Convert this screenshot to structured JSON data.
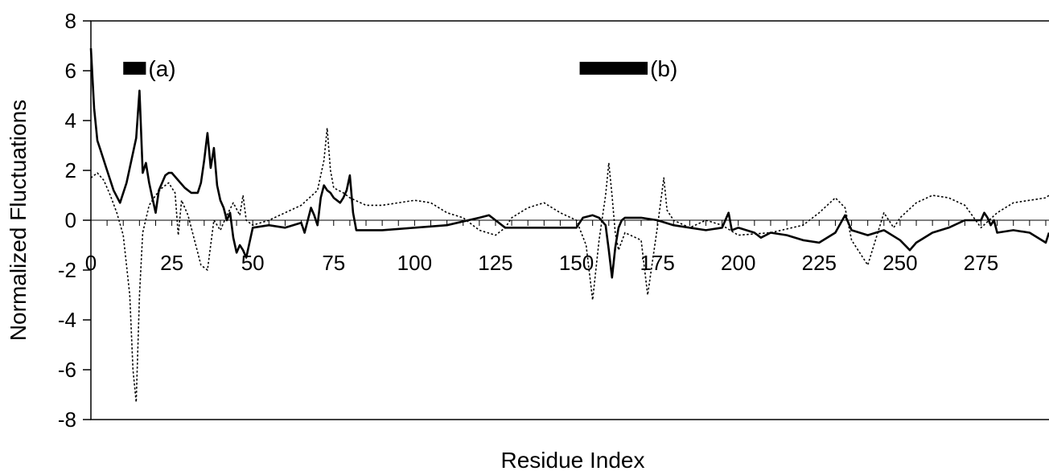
{
  "chart_data": {
    "type": "line",
    "title": "",
    "xlabel": "Residue Index",
    "ylabel": "Normalized Fluctuations",
    "xlim": [
      0,
      296
    ],
    "ylim": [
      -8,
      8
    ],
    "x_ticks": [
      0,
      25,
      50,
      75,
      100,
      125,
      150,
      175,
      200,
      225,
      250,
      275
    ],
    "y_ticks": [
      8,
      6,
      4,
      2,
      0,
      -2,
      -4,
      -6,
      -8
    ],
    "grid": false,
    "legend": "none",
    "annotations": [
      {
        "label": "(a)",
        "x_start": 10,
        "x_end": 17,
        "y": 6.1
      },
      {
        "label": "(b)",
        "x_start": 151,
        "x_end": 172,
        "y": 6.1
      }
    ],
    "series": [
      {
        "style": "solid",
        "color": "#000000",
        "x": [
          0,
          1,
          2,
          3,
          5,
          7,
          9,
          11,
          13,
          14,
          15,
          16,
          17,
          18,
          19,
          20,
          21,
          22,
          23,
          24,
          25,
          27,
          29,
          31,
          33,
          34,
          35,
          36,
          37,
          38,
          39,
          40,
          41,
          42,
          43,
          44,
          45,
          46,
          47,
          48,
          50,
          55,
          60,
          65,
          66,
          67,
          68,
          69,
          70,
          71,
          72,
          73,
          74,
          75,
          76,
          77,
          78,
          79,
          80,
          81,
          82,
          83,
          84,
          90,
          100,
          110,
          120,
          123,
          125,
          128,
          130,
          140,
          150,
          152,
          155,
          157,
          159,
          160,
          161,
          162,
          163,
          164,
          165,
          170,
          175,
          180,
          185,
          190,
          195,
          197,
          198,
          200,
          205,
          207,
          210,
          215,
          220,
          225,
          230,
          233,
          235,
          240,
          245,
          250,
          253,
          255,
          260,
          265,
          270,
          275,
          276,
          277,
          278,
          279,
          280,
          285,
          290,
          295,
          296
        ],
        "y": [
          6.9,
          4.5,
          3.2,
          2.8,
          2.0,
          1.2,
          0.7,
          1.5,
          2.7,
          3.3,
          5.2,
          1.9,
          2.3,
          1.5,
          0.9,
          0.3,
          1.2,
          1.5,
          1.8,
          1.9,
          1.9,
          1.6,
          1.3,
          1.1,
          1.1,
          1.5,
          2.4,
          3.5,
          2.1,
          2.9,
          1.4,
          0.8,
          0.5,
          0.0,
          0.3,
          -0.7,
          -1.3,
          -1.0,
          -1.2,
          -1.5,
          -0.3,
          -0.2,
          -0.3,
          -0.1,
          -0.5,
          0.0,
          0.5,
          0.2,
          -0.2,
          0.9,
          1.4,
          1.2,
          1.1,
          0.9,
          0.8,
          0.7,
          0.9,
          1.2,
          1.8,
          0.3,
          -0.4,
          -0.4,
          -0.4,
          -0.4,
          -0.3,
          -0.2,
          0.1,
          0.2,
          0.0,
          -0.3,
          -0.3,
          -0.3,
          -0.3,
          0.1,
          0.2,
          0.1,
          -0.2,
          -1.2,
          -2.3,
          -1.1,
          -0.3,
          0.0,
          0.1,
          0.1,
          0.0,
          -0.2,
          -0.3,
          -0.4,
          -0.3,
          0.3,
          -0.4,
          -0.3,
          -0.5,
          -0.7,
          -0.5,
          -0.6,
          -0.8,
          -0.9,
          -0.5,
          0.2,
          -0.4,
          -0.6,
          -0.4,
          -0.8,
          -1.2,
          -0.9,
          -0.5,
          -0.3,
          0.0,
          0.0,
          0.3,
          0.1,
          -0.2,
          0.0,
          -0.5,
          -0.4,
          -0.5,
          -0.9,
          -0.5
        ]
      },
      {
        "style": "dotted",
        "color": "#000000",
        "x": [
          0,
          2,
          4,
          6,
          8,
          10,
          12,
          13,
          14,
          15,
          16,
          18,
          20,
          22,
          24,
          26,
          27,
          28,
          30,
          32,
          34,
          36,
          37,
          38,
          40,
          42,
          44,
          46,
          47,
          48,
          50,
          55,
          60,
          65,
          70,
          72,
          73,
          74,
          75,
          78,
          80,
          85,
          90,
          95,
          100,
          105,
          110,
          115,
          120,
          125,
          128,
          130,
          135,
          140,
          145,
          150,
          153,
          155,
          157,
          159,
          160,
          161,
          162,
          163,
          165,
          170,
          172,
          175,
          177,
          178,
          180,
          185,
          190,
          195,
          200,
          210,
          220,
          225,
          230,
          233,
          235,
          240,
          245,
          248,
          250,
          255,
          260,
          265,
          270,
          275,
          280,
          285,
          290,
          295,
          296
        ],
        "y": [
          1.7,
          1.9,
          1.6,
          1.0,
          0.3,
          -0.6,
          -3.0,
          -6.0,
          -7.3,
          -3.0,
          -0.5,
          0.6,
          1.0,
          1.3,
          1.5,
          1.1,
          -0.6,
          0.8,
          0.2,
          -0.8,
          -1.8,
          -2.0,
          -1.0,
          0.0,
          -0.4,
          0.2,
          0.7,
          0.2,
          1.0,
          0.0,
          -0.2,
          0.0,
          0.3,
          0.6,
          1.2,
          2.4,
          3.7,
          2.0,
          1.3,
          1.1,
          0.9,
          0.6,
          0.6,
          0.7,
          0.8,
          0.7,
          0.3,
          0.1,
          -0.4,
          -0.6,
          -0.3,
          0.1,
          0.5,
          0.7,
          0.3,
          0.0,
          -1.0,
          -3.2,
          -0.8,
          1.0,
          2.3,
          1.0,
          -0.5,
          -1.2,
          -0.5,
          -0.8,
          -3.0,
          -0.3,
          1.7,
          0.4,
          0.0,
          -0.3,
          0.0,
          -0.2,
          -0.6,
          -0.5,
          -0.2,
          0.3,
          0.9,
          0.5,
          -0.8,
          -1.8,
          0.3,
          -0.3,
          0.1,
          0.7,
          1.0,
          0.9,
          0.6,
          -0.3,
          0.3,
          0.7,
          0.8,
          0.9,
          1.0
        ]
      }
    ]
  }
}
